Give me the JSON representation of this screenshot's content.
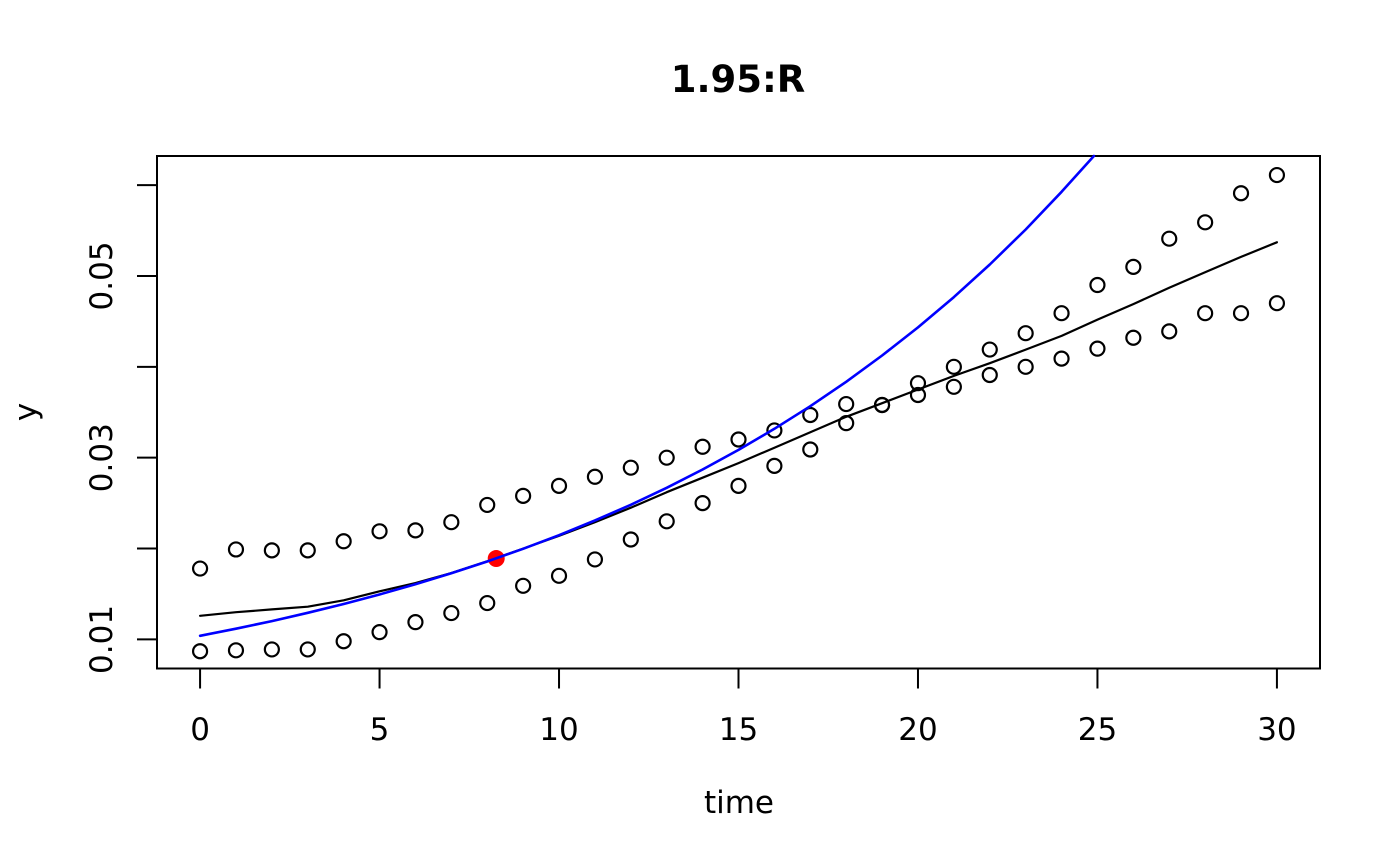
{
  "page": {
    "background": "#ffffff"
  },
  "chart_data": {
    "type": "scatter",
    "title": "1.95:R",
    "xlabel": "time",
    "ylabel": "y",
    "grid": false,
    "legend": "none",
    "x_range": [
      -1.2,
      31.2
    ],
    "y_range": [
      0.0068,
      0.0632
    ],
    "x_ticks": [
      {
        "value": 0,
        "label": "0"
      },
      {
        "value": 5,
        "label": "5"
      },
      {
        "value": 10,
        "label": "10"
      },
      {
        "value": 15,
        "label": "15"
      },
      {
        "value": 20,
        "label": "20"
      },
      {
        "value": 25,
        "label": "25"
      },
      {
        "value": 30,
        "label": "30"
      }
    ],
    "y_ticks": [
      {
        "value": 0.01,
        "label": "0.01"
      },
      {
        "value": 0.02,
        "label": ""
      },
      {
        "value": 0.03,
        "label": "0.03"
      },
      {
        "value": 0.04,
        "label": ""
      },
      {
        "value": 0.05,
        "label": "0.05"
      },
      {
        "value": 0.06,
        "label": ""
      }
    ],
    "x": [
      0,
      1,
      2,
      3,
      4,
      5,
      6,
      7,
      8,
      9,
      10,
      11,
      12,
      13,
      14,
      15,
      16,
      17,
      18,
      19,
      20,
      21,
      22,
      23,
      24,
      25,
      26,
      27,
      28,
      29,
      30
    ],
    "series": [
      {
        "name": "upper_band_points",
        "type": "points",
        "marker": "open-circle",
        "color": "#000000",
        "values": [
          0.0178,
          0.0199,
          0.0198,
          0.0198,
          0.0208,
          0.0219,
          0.022,
          0.0229,
          0.0248,
          0.0258,
          0.0269,
          0.0279,
          0.0289,
          0.03,
          0.0312,
          0.032,
          0.033,
          0.0347,
          0.0359,
          0.0358,
          0.0369,
          0.0378,
          0.0391,
          0.04,
          0.0409,
          0.042,
          0.0432,
          0.0439,
          0.0459,
          0.0459,
          0.047
        ]
      },
      {
        "name": "lower_band_points",
        "type": "points",
        "marker": "open-circle",
        "color": "#000000",
        "values": [
          0.0087,
          0.0088,
          0.0089,
          0.0089,
          0.0098,
          0.0108,
          0.0119,
          0.0129,
          0.014,
          0.0159,
          0.017,
          0.0188,
          0.021,
          0.023,
          0.025,
          0.0269,
          0.0291,
          0.0309,
          0.0338,
          0.0358,
          0.0382,
          0.04,
          0.0419,
          0.0437,
          0.0459,
          0.049,
          0.051,
          0.0541,
          0.0559,
          0.0591,
          0.0611
        ]
      },
      {
        "name": "fit_line",
        "type": "line",
        "color": "#000000",
        "width": 2.2,
        "values": [
          0.0126,
          0.013,
          0.0133,
          0.0136,
          0.0143,
          0.0153,
          0.0162,
          0.0173,
          0.0186,
          0.02,
          0.0214,
          0.0229,
          0.0245,
          0.0262,
          0.0278,
          0.0294,
          0.0311,
          0.0328,
          0.0345,
          0.036,
          0.0375,
          0.039,
          0.0404,
          0.0419,
          0.0434,
          0.0452,
          0.0469,
          0.0487,
          0.0504,
          0.0521,
          0.0537
        ]
      },
      {
        "name": "exponential_curve",
        "type": "line",
        "color": "#0000ff",
        "width": 2.6,
        "x": [
          0,
          1,
          2,
          3,
          4,
          5,
          6,
          7,
          8,
          9,
          10,
          11,
          12,
          13,
          14,
          15,
          16,
          17,
          18,
          19,
          20,
          21,
          22,
          23,
          24,
          24.9
        ],
        "values": [
          0.0104,
          0.01118,
          0.01202,
          0.01293,
          0.0139,
          0.01494,
          0.01607,
          0.01728,
          0.01858,
          0.01997,
          0.02147,
          0.02309,
          0.02482,
          0.02669,
          0.0287,
          0.03086,
          0.03318,
          0.03567,
          0.03835,
          0.04124,
          0.04434,
          0.04767,
          0.05126,
          0.05511,
          0.05926,
          0.0632
        ]
      },
      {
        "name": "highlight_point",
        "type": "points",
        "marker": "filled-circle",
        "color": "#ff0000",
        "x": [
          8.25
        ],
        "values": [
          0.0189
        ]
      }
    ]
  }
}
